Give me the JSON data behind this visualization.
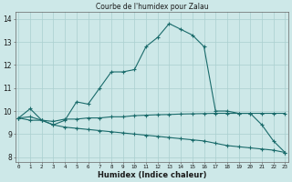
{
  "title": "Courbe de l'humidex pour Zalau",
  "xlabel": "Humidex (Indice chaleur)",
  "bg_color": "#cde8e8",
  "grid_color": "#aacfcf",
  "line_color": "#1a6b6b",
  "x_ticks": [
    0,
    1,
    2,
    3,
    4,
    5,
    6,
    7,
    8,
    9,
    10,
    11,
    12,
    13,
    14,
    15,
    16,
    17,
    18,
    19,
    20,
    21,
    22,
    23
  ],
  "ylim": [
    7.8,
    14.3
  ],
  "xlim": [
    -0.3,
    23.3
  ],
  "line1_x": [
    0,
    1,
    2,
    3,
    4,
    5,
    6,
    7,
    8,
    9,
    10,
    11,
    12,
    13,
    14,
    15,
    16,
    17,
    18,
    19,
    20,
    21,
    22,
    23
  ],
  "line1_y": [
    9.7,
    10.1,
    9.6,
    9.4,
    9.6,
    10.4,
    10.3,
    11.0,
    11.7,
    11.7,
    11.8,
    12.8,
    13.2,
    13.8,
    13.55,
    13.3,
    12.8,
    10.0,
    10.0,
    9.9,
    9.9,
    9.4,
    8.7,
    8.2
  ],
  "line2_x": [
    0,
    1,
    2,
    3,
    4,
    5,
    6,
    7,
    8,
    9,
    10,
    11,
    12,
    13,
    14,
    15,
    16,
    17,
    18,
    19,
    20,
    21,
    22,
    23
  ],
  "line2_y": [
    9.7,
    9.75,
    9.6,
    9.55,
    9.65,
    9.65,
    9.7,
    9.7,
    9.75,
    9.75,
    9.8,
    9.82,
    9.84,
    9.85,
    9.87,
    9.88,
    9.89,
    9.9,
    9.9,
    9.9,
    9.9,
    9.9,
    9.9,
    9.9
  ],
  "line3_x": [
    0,
    1,
    2,
    3,
    4,
    5,
    6,
    7,
    8,
    9,
    10,
    11,
    12,
    13,
    14,
    15,
    16,
    17,
    18,
    19,
    20,
    21,
    22,
    23
  ],
  "line3_y": [
    9.7,
    9.6,
    9.6,
    9.4,
    9.3,
    9.25,
    9.2,
    9.15,
    9.1,
    9.05,
    9.0,
    8.95,
    8.9,
    8.85,
    8.8,
    8.75,
    8.7,
    8.6,
    8.5,
    8.45,
    8.4,
    8.35,
    8.3,
    8.2
  ]
}
